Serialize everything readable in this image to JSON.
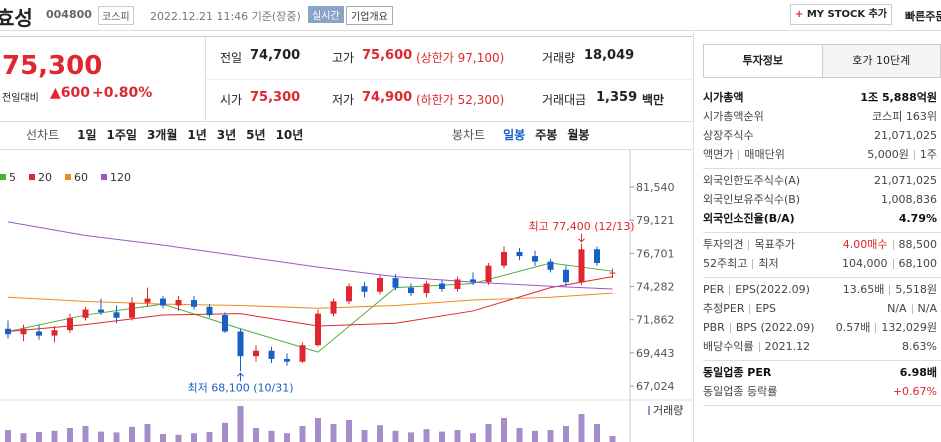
{
  "header": {
    "name": "효성",
    "code": "004800",
    "market": "코스피",
    "time": "2022.12.21 11:46 기준(장중)",
    "realtime": "실시간",
    "overview": "기업개요",
    "mystock": "MY STOCK 추가",
    "quick_order": "빠른주문"
  },
  "quote": {
    "price": "75,300",
    "change_label": "전일대비",
    "change": "▲600",
    "change_rate": "+0.80%",
    "items": [
      {
        "label": "전일",
        "value": "74,700"
      },
      {
        "label": "고가",
        "value": "75,600",
        "note": "(상한가 97,100)"
      },
      {
        "label": "거래량",
        "value": "18,049"
      },
      {
        "label": "시가",
        "value": "75,300"
      },
      {
        "label": "저가",
        "value": "74,900",
        "note": "(하한가 52,300)"
      },
      {
        "label": "거래대금",
        "value": "1,359",
        "note": "백만"
      }
    ]
  },
  "tabs": {
    "line": [
      "선차트",
      "1일",
      "1주일",
      "3개월",
      "1년",
      "3년",
      "5년",
      "10년"
    ],
    "candle": [
      "봉차트",
      "일봉",
      "주봉",
      "월봉"
    ],
    "active": 1
  },
  "chart_data": {
    "type": "candlestick",
    "ylim": [
      66150,
      83510
    ],
    "yticks": [
      {
        "value": 81540,
        "label": "81,540"
      },
      {
        "value": 79121,
        "label": "79,121"
      },
      {
        "value": 76701,
        "label": "76,701"
      },
      {
        "value": 74282,
        "label": "74,282"
      },
      {
        "value": 71862,
        "label": "71,862"
      },
      {
        "value": 69443,
        "label": "69,443"
      },
      {
        "value": 67024,
        "label": "67,024"
      }
    ],
    "up_color": "#e0272f",
    "down_color": "#1a5fc6",
    "ohlc": [
      [
        71200,
        71800,
        70500,
        70800
      ],
      [
        70800,
        71500,
        70300,
        71200
      ],
      [
        71000,
        71500,
        70400,
        70700
      ],
      [
        70700,
        71400,
        70200,
        71100
      ],
      [
        71100,
        72300,
        70900,
        72000
      ],
      [
        72000,
        72800,
        71800,
        72600
      ],
      [
        72600,
        73400,
        72200,
        72400
      ],
      [
        72400,
        72900,
        71600,
        72000
      ],
      [
        72000,
        73500,
        71800,
        73100
      ],
      [
        73100,
        74200,
        72800,
        73400
      ],
      [
        73400,
        73600,
        72700,
        72900
      ],
      [
        72900,
        73600,
        72500,
        73300
      ],
      [
        73300,
        73600,
        72600,
        72800
      ],
      [
        72800,
        73000,
        72000,
        72200
      ],
      [
        72200,
        72400,
        70900,
        71000
      ],
      [
        71000,
        71200,
        68100,
        69200
      ],
      [
        69200,
        70000,
        68800,
        69600
      ],
      [
        69600,
        69900,
        68700,
        69000
      ],
      [
        69000,
        69400,
        68500,
        68800
      ],
      [
        68800,
        70200,
        68700,
        70000
      ],
      [
        70000,
        72600,
        69900,
        72300
      ],
      [
        72300,
        73400,
        72100,
        73200
      ],
      [
        73200,
        74500,
        73000,
        74300
      ],
      [
        74300,
        74600,
        73500,
        73900
      ],
      [
        73900,
        75100,
        73700,
        74900
      ],
      [
        74900,
        75200,
        74000,
        74200
      ],
      [
        74200,
        74500,
        73600,
        73800
      ],
      [
        73800,
        74700,
        73500,
        74500
      ],
      [
        74500,
        74800,
        73900,
        74100
      ],
      [
        74100,
        75000,
        73900,
        74800
      ],
      [
        74800,
        75300,
        74400,
        74600
      ],
      [
        74600,
        76000,
        74400,
        75800
      ],
      [
        75800,
        77200,
        75600,
        76800
      ],
      [
        76800,
        77100,
        76200,
        76500
      ],
      [
        76500,
        76900,
        75800,
        76100
      ],
      [
        76100,
        76300,
        75300,
        75500
      ],
      [
        75500,
        75800,
        74300,
        74600
      ],
      [
        74600,
        77400,
        74400,
        77000
      ],
      [
        77000,
        77200,
        75800,
        76000
      ],
      [
        75300,
        75600,
        74900,
        75300
      ]
    ],
    "volume": [
      30000,
      22000,
      25000,
      28000,
      35000,
      40000,
      26000,
      24000,
      38000,
      45000,
      20000,
      18000,
      22000,
      25000,
      48000,
      90000,
      35000,
      28000,
      22000,
      40000,
      60000,
      45000,
      55000,
      30000,
      42000,
      28000,
      24000,
      32000,
      26000,
      30000,
      22000,
      45000,
      60000,
      35000,
      28000,
      30000,
      40000,
      70000,
      45000,
      15000
    ],
    "volume_label": "거래량",
    "ma_x": [
      0,
      5,
      10,
      15,
      20,
      25,
      30,
      35,
      39
    ],
    "ma": [
      {
        "name": "5",
        "color": "#4caf3a",
        "values": [
          71000,
          72200,
          73000,
          71200,
          69500,
          74200,
          74500,
          76000,
          75400
        ]
      },
      {
        "name": "20",
        "color": "#e0272f",
        "values": [
          71000,
          71500,
          72200,
          72300,
          71400,
          71600,
          72500,
          74200,
          75000
        ]
      },
      {
        "name": "60",
        "color": "#f08c1e",
        "values": [
          73500,
          73200,
          73000,
          72900,
          72700,
          72900,
          73300,
          73500,
          73800
        ]
      },
      {
        "name": "120",
        "color": "#9b59c7",
        "values": [
          79000,
          78000,
          77300,
          76500,
          75700,
          75000,
          74600,
          74300,
          74100
        ]
      }
    ],
    "high_label": "최고 77,400 (12/13)",
    "low_label": "최저 68,100 (10/31)"
  },
  "invest": {
    "tabs": [
      "투자정보",
      "호가 10단계"
    ],
    "groups": [
      [
        {
          "label": [
            "시가총액"
          ],
          "value": [
            "1조 5,888억원"
          ],
          "strong": true
        },
        {
          "label": [
            "시가총액순위"
          ],
          "value": [
            "코스피 163위"
          ]
        },
        {
          "label": [
            "상장주식수"
          ],
          "value": [
            "21,071,025"
          ]
        },
        {
          "label": [
            "액면가",
            "매매단위"
          ],
          "value": [
            "5,000원",
            "1주"
          ]
        }
      ],
      [
        {
          "label": [
            "외국인한도주식수(A)"
          ],
          "value": [
            "21,071,025"
          ]
        },
        {
          "label": [
            "외국인보유주식수(B)"
          ],
          "value": [
            "1,008,836"
          ]
        },
        {
          "label": [
            "외국인소진율(B/A)"
          ],
          "value": [
            "4.79%"
          ],
          "strong": true
        }
      ],
      [
        {
          "label": [
            "투자의견",
            "목표주가"
          ],
          "value": [
            "4.00매수",
            "88,500"
          ],
          "red": true
        },
        {
          "label": [
            "52주최고",
            "최저"
          ],
          "value": [
            "104,000",
            "68,100"
          ]
        }
      ],
      [
        {
          "label": [
            "PER",
            "EPS(2022.09)"
          ],
          "value": [
            "13.65배",
            "5,518원"
          ]
        },
        {
          "label": [
            "추정PER",
            "EPS"
          ],
          "value": [
            "N/A",
            "N/A"
          ]
        },
        {
          "label": [
            "PBR",
            "BPS (2022.09)"
          ],
          "value": [
            "0.57배",
            "132,029원"
          ]
        },
        {
          "label": [
            "배당수익률",
            "2021.12"
          ],
          "value": [
            "8.63%"
          ]
        }
      ],
      [
        {
          "label": [
            "동일업종 PER"
          ],
          "value": [
            "6.98배"
          ],
          "strong": true
        },
        {
          "label": [
            "동일업종 등락률"
          ],
          "value": [
            "+0.67%"
          ],
          "red": true
        }
      ]
    ]
  }
}
